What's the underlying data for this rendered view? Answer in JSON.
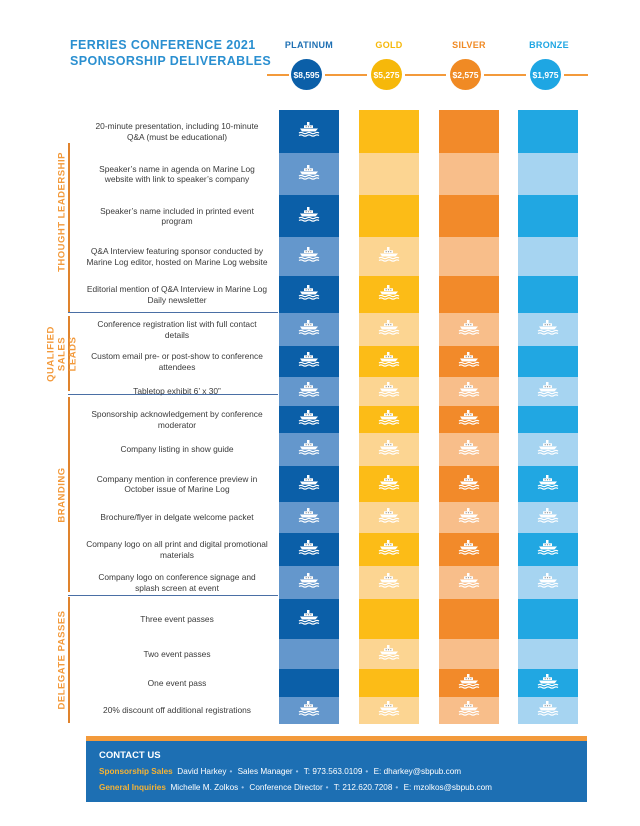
{
  "title": {
    "line1": "FERRIES CONFERENCE 2021",
    "line2": "SPONSORSHIP DELIVERABLES"
  },
  "tiers": [
    {
      "name": "PLATINUM",
      "price": "$8,595",
      "name_color": "#1d6fb3",
      "badge": "#0b5fa8",
      "dark": "#0b5fa8",
      "light": "#6497cc"
    },
    {
      "name": "GOLD",
      "price": "$5,275",
      "name_color": "#f6b80a",
      "badge": "#f6b80a",
      "dark": "#fcbc17",
      "light": "#fcd592"
    },
    {
      "name": "SILVER",
      "price": "$2,575",
      "name_color": "#f08a24",
      "badge": "#f08a24",
      "dark": "#f28a2a",
      "light": "#f8be8a"
    },
    {
      "name": "BRONZE",
      "price": "$1,975",
      "name_color": "#1ea6e3",
      "badge": "#1ea6e3",
      "dark": "#21a7e2",
      "light": "#a6d4f1"
    }
  ],
  "categories": [
    "THOUGHT LEADERSHIP",
    "QUALIFIED SALES LEADS",
    "BRANDING",
    "DELEGATE PASSES"
  ],
  "rows": [
    {
      "label": "20-minute presentation, including 10-minute Q&A (must be educational)",
      "included": [
        true,
        false,
        false,
        false
      ]
    },
    {
      "label": "Speaker’s name in agenda on Marine Log website with link to speaker’s company",
      "included": [
        true,
        false,
        false,
        false
      ]
    },
    {
      "label": "Speaker’s name included in printed event program",
      "included": [
        true,
        false,
        false,
        false
      ]
    },
    {
      "label": "Q&A Interview featuring sponsor conducted by Marine Log editor, hosted on Marine Log website",
      "included": [
        true,
        true,
        false,
        false
      ]
    },
    {
      "label": "Editorial mention of Q&A Interview in Marine Log Daily newsletter",
      "included": [
        true,
        true,
        false,
        false
      ]
    },
    {
      "label": "Conference registration list with full contact details",
      "included": [
        true,
        true,
        true,
        true
      ]
    },
    {
      "label": "Custom email pre- or post-show to conference attendees",
      "included": [
        true,
        true,
        true,
        false
      ]
    },
    {
      "label": "Tabletop exhibit 6’ x 30”",
      "included": [
        true,
        true,
        true,
        true
      ]
    },
    {
      "label": "Sponsorship acknowledgement by conference moderator",
      "included": [
        true,
        true,
        true,
        false
      ]
    },
    {
      "label": "Company listing in show guide",
      "included": [
        true,
        true,
        true,
        true
      ]
    },
    {
      "label": "Company mention in conference preview in October issue of Marine Log",
      "included": [
        true,
        true,
        true,
        true
      ]
    },
    {
      "label": "Brochure/flyer in delgate welcome packet",
      "included": [
        true,
        true,
        true,
        true
      ]
    },
    {
      "label": "Company logo on all print and digital promotional materials",
      "included": [
        true,
        true,
        true,
        true
      ]
    },
    {
      "label": "Company logo on conference signage and splash screen at event",
      "included": [
        true,
        true,
        true,
        true
      ]
    },
    {
      "label": "Three event passes",
      "included": [
        true,
        false,
        false,
        false
      ]
    },
    {
      "label": "Two event passes",
      "included": [
        false,
        true,
        false,
        false
      ]
    },
    {
      "label": "One event pass",
      "included": [
        false,
        false,
        true,
        true
      ]
    },
    {
      "label": "20% discount off additional registrations",
      "included": [
        true,
        true,
        true,
        true
      ]
    }
  ],
  "icon": "ferry-icon",
  "contact": {
    "title": "CONTACT US",
    "sales": {
      "label": "Sponsorship Sales",
      "name": "David Harkey",
      "role": "Sales Manager",
      "phone": "T: 973.563.0109",
      "email": "E: dharkey@sbpub.com"
    },
    "general": {
      "label": "General Inquiries",
      "name": "Michelle M. Zolkos",
      "role": "Conference Director",
      "phone": "T: 212.620.7208",
      "email": "E: mzolkos@sbpub.com"
    }
  },
  "colors": {
    "accent_orange": "#f39a3b",
    "title_blue": "#2a8fd0",
    "footer_blue": "#1d6fb3"
  }
}
